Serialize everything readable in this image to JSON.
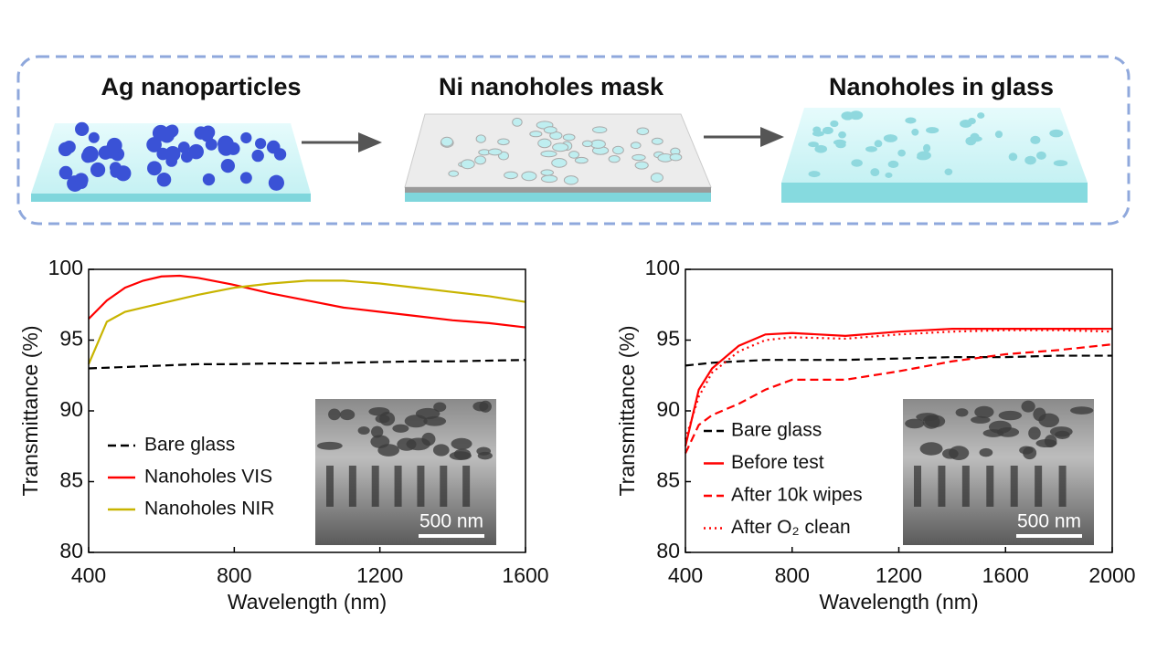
{
  "diagram": {
    "steps": [
      "Ag nanoparticles",
      "Ni nanoholes mask",
      "Nanoholes in glass"
    ]
  },
  "chart_data": [
    {
      "type": "line",
      "xlabel": "Wavelength (nm)",
      "ylabel": "Transmittance (%)",
      "x": [
        400,
        450,
        500,
        550,
        600,
        650,
        700,
        800,
        900,
        1000,
        1100,
        1200,
        1300,
        1400,
        1500,
        1600
      ],
      "xlim": [
        400,
        1600
      ],
      "xticks": [
        400,
        800,
        1200,
        1600
      ],
      "ylim": [
        80,
        100
      ],
      "yticks": [
        80,
        85,
        90,
        95,
        100
      ],
      "series": [
        {
          "name": "Bare glass",
          "color": "#000000",
          "dash": "dashed",
          "values": [
            93.0,
            93.05,
            93.1,
            93.15,
            93.2,
            93.25,
            93.3,
            93.3,
            93.35,
            93.35,
            93.4,
            93.45,
            93.5,
            93.5,
            93.55,
            93.6
          ]
        },
        {
          "name": "Nanoholes VIS",
          "color": "#ff0000",
          "dash": "solid",
          "values": [
            96.5,
            97.8,
            98.7,
            99.2,
            99.5,
            99.55,
            99.4,
            98.9,
            98.3,
            97.8,
            97.3,
            97.0,
            96.7,
            96.4,
            96.2,
            95.9
          ]
        },
        {
          "name": "Nanoholes NIR",
          "color": "#c8b400",
          "dash": "solid",
          "values": [
            93.3,
            96.3,
            97.0,
            97.3,
            97.6,
            97.9,
            98.2,
            98.7,
            99.0,
            99.2,
            99.2,
            99.0,
            98.7,
            98.4,
            98.1,
            97.7
          ]
        }
      ],
      "annotations": [
        "500 nm"
      ]
    },
    {
      "type": "line",
      "xlabel": "Wavelength (nm)",
      "ylabel": "Transmittance (%)",
      "x": [
        400,
        450,
        500,
        600,
        700,
        800,
        1000,
        1200,
        1400,
        1600,
        1800,
        2000
      ],
      "xlim": [
        400,
        2000
      ],
      "xticks": [
        400,
        800,
        1200,
        1600,
        2000
      ],
      "ylim": [
        80,
        100
      ],
      "yticks": [
        80,
        85,
        90,
        95,
        100
      ],
      "series": [
        {
          "name": "Bare glass",
          "color": "#000000",
          "dash": "dashed",
          "values": [
            93.2,
            93.3,
            93.4,
            93.5,
            93.6,
            93.6,
            93.6,
            93.7,
            93.8,
            93.8,
            93.9,
            93.9
          ]
        },
        {
          "name": "Before test",
          "color": "#ff0000",
          "dash": "solid",
          "values": [
            87.5,
            91.5,
            93.0,
            94.6,
            95.4,
            95.5,
            95.3,
            95.6,
            95.8,
            95.8,
            95.8,
            95.8
          ]
        },
        {
          "name": "After 10k wipes",
          "color": "#ff0000",
          "dash": "dashed",
          "values": [
            87.0,
            89.0,
            89.7,
            90.5,
            91.5,
            92.2,
            92.2,
            92.8,
            93.5,
            94.0,
            94.3,
            94.7
          ]
        },
        {
          "name": "After O₂ clean",
          "color": "#ff0000",
          "dash": "dotted",
          "values": [
            88.0,
            91.0,
            92.7,
            94.2,
            95.0,
            95.2,
            95.1,
            95.4,
            95.6,
            95.7,
            95.7,
            95.6
          ]
        }
      ],
      "annotations": [
        "500 nm"
      ]
    }
  ]
}
